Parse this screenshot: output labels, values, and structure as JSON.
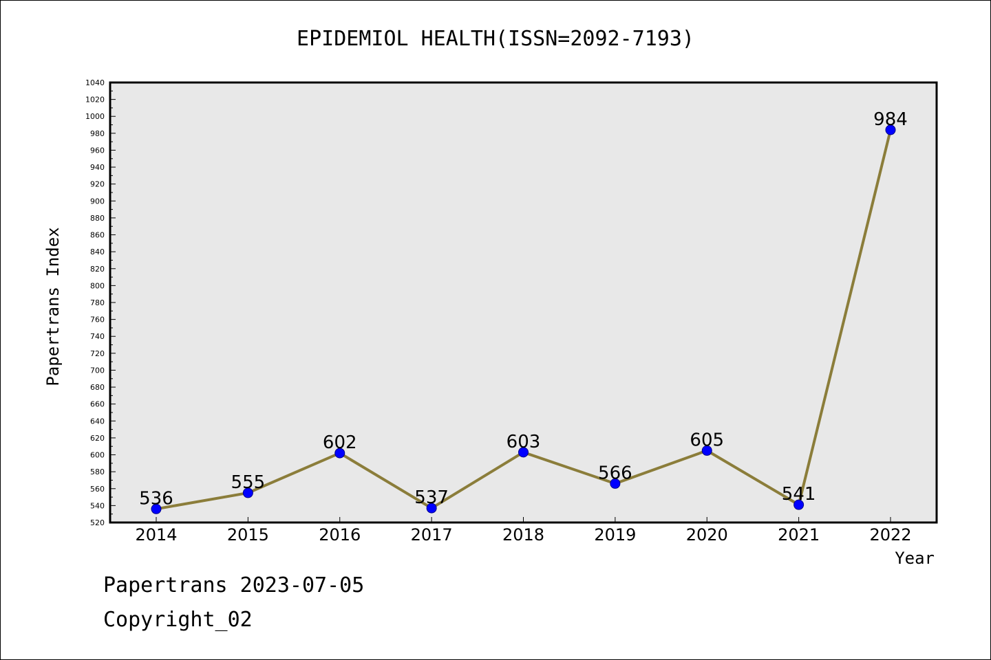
{
  "chart_data": {
    "type": "line",
    "title": "EPIDEMIOL HEALTH(ISSN=2092-7193)",
    "xlabel": "Year",
    "ylabel": "Papertrans Index",
    "categories": [
      "2014",
      "2015",
      "2016",
      "2017",
      "2018",
      "2019",
      "2020",
      "2021",
      "2022"
    ],
    "series": [
      {
        "values": [
          536,
          555,
          602,
          537,
          603,
          566,
          605,
          541,
          984
        ]
      }
    ],
    "ylim": [
      520,
      1040
    ],
    "ytick_step": 20,
    "grid": false,
    "colors": {
      "line": "#8b7d3a",
      "marker": "#0000ff",
      "plot_bg": "#e8e8e8"
    }
  },
  "footer": {
    "line1": "Papertrans 2023-07-05",
    "line2": "Copyright_02"
  }
}
